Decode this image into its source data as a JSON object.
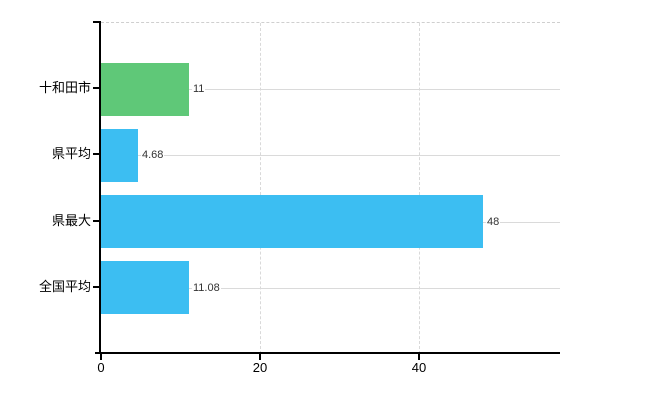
{
  "chart_data": {
    "type": "bar",
    "orientation": "horizontal",
    "title": "",
    "categories": [
      "十和田市",
      "県平均",
      "県最大",
      "全国平均"
    ],
    "values": [
      11,
      4.68,
      48,
      11.08
    ],
    "value_labels": [
      "11",
      "4.68",
      "48",
      "11.08"
    ],
    "bar_colors": [
      "#5fc878",
      "#3cbef2",
      "#3cbef2",
      "#3cbef2"
    ],
    "x_axis": {
      "min": 0,
      "max": 57.7,
      "ticks": [
        0,
        20,
        40
      ],
      "tick_labels": [
        "0",
        "20",
        "40"
      ]
    },
    "grid": {
      "horizontal": "solid",
      "vertical": "dashed",
      "top_border": "dashed"
    },
    "legend": "none"
  },
  "colors": {
    "bar_green": "#5fc878",
    "bar_blue": "#3cbef2",
    "axis": "#000000",
    "gridline": "#d9d9d9",
    "value_label_text": "#333333",
    "category_label_text": "#000000",
    "background": "#ffffff"
  }
}
